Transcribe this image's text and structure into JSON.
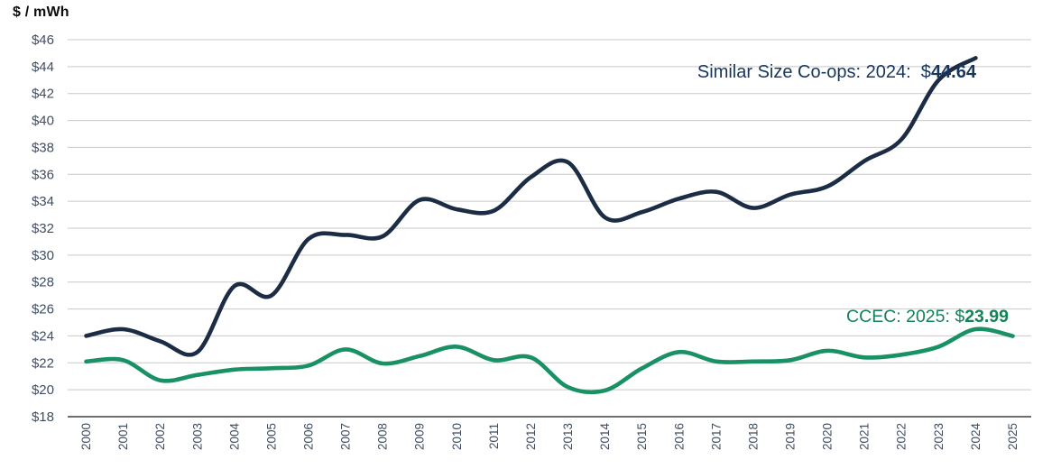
{
  "chart_data": {
    "type": "line",
    "title": "",
    "ylabel": "$ / mWh",
    "xlabel": "",
    "grid": true,
    "legend_position": "none",
    "ylim": [
      18,
      46
    ],
    "y_tick_step": 2,
    "y_tick_values": [
      46,
      44,
      42,
      40,
      38,
      36,
      34,
      32,
      30,
      28,
      26,
      24,
      22,
      20,
      18
    ],
    "y_tick_labels": [
      "$46",
      "$44",
      "$42",
      "$40",
      "$38",
      "$36",
      "$34",
      "$32",
      "$30",
      "$28",
      "$26",
      "$24",
      "$22",
      "$20",
      "$18"
    ],
    "x_labels": [
      "2000",
      "2001",
      "2002",
      "2003",
      "2004",
      "2005",
      "2006",
      "2007",
      "2008",
      "2009",
      "2010",
      "2011",
      "2012",
      "2013",
      "2014",
      "2015",
      "2016",
      "2017",
      "2018",
      "2019",
      "2020",
      "2021",
      "2022",
      "2023",
      "2024",
      "2025"
    ],
    "series": [
      {
        "name": "Similar Size Co-ops",
        "color": "#1b2c44",
        "values": [
          24.0,
          24.5,
          23.6,
          22.8,
          27.7,
          27.0,
          31.2,
          31.5,
          31.4,
          34.1,
          33.4,
          33.3,
          35.8,
          36.9,
          32.8,
          33.2,
          34.2,
          34.7,
          33.5,
          34.5,
          35.1,
          37.0,
          38.6,
          43.0,
          44.64,
          null
        ]
      },
      {
        "name": "CCEC",
        "color": "#1a9165",
        "values": [
          22.1,
          22.2,
          20.7,
          21.1,
          21.5,
          21.6,
          21.8,
          23.0,
          21.95,
          22.5,
          23.2,
          22.2,
          22.4,
          20.2,
          19.95,
          21.6,
          22.8,
          22.1,
          22.1,
          22.2,
          22.9,
          22.4,
          22.6,
          23.2,
          24.5,
          23.99
        ]
      }
    ],
    "annotations": [
      {
        "series": "Similar Size Co-ops",
        "prefix": "Similar Size Co-ops: 2024:  $",
        "value": "44.64",
        "color": "#17365d"
      },
      {
        "series": "CCEC",
        "prefix": "CCEC: 2025: $",
        "value": "23.99",
        "color": "#158257"
      }
    ],
    "colors": {
      "tick_label": "#3f4e63",
      "gridline": "#c9c9c9",
      "axis_line": "#3f3f3f"
    }
  }
}
